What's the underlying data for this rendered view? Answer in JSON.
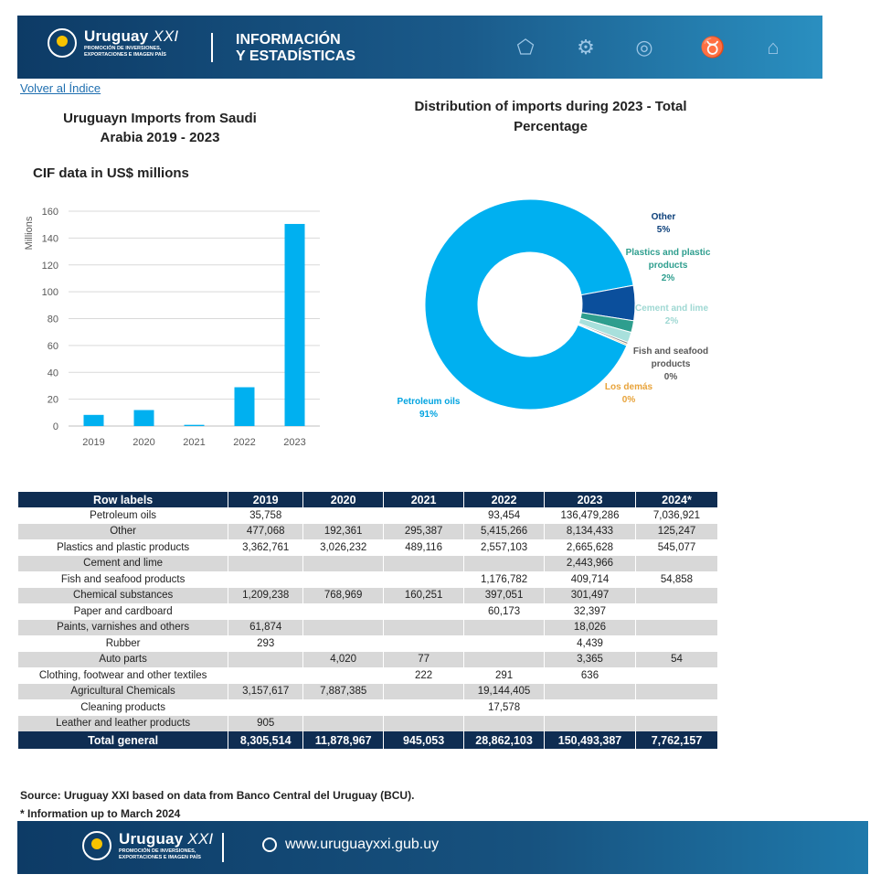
{
  "header": {
    "brand": "Uruguay",
    "brand_suffix": "XXI",
    "tagline_1": "PROMOCIÓN DE INVERSIONES,",
    "tagline_2": "EXPORTACIONES E IMAGEN PAÍS",
    "section_1": "INFORMACIÓN",
    "section_2": "Y ESTADÍSTICAS",
    "icons": [
      "uruguay-map-icon",
      "tractor-icon",
      "globe-icon",
      "cow-icon",
      "industry-icon"
    ]
  },
  "back_link": "Volver al Índice",
  "bar_title_1": "Uruguayn Imports from Saudi",
  "bar_title_2": "Arabia 2019 - 2023",
  "bar_subtitle": "CIF data in US$ millions",
  "pie_title_1": "Distribution of imports during 2023 - Total",
  "pie_title_2": "Percentage",
  "chart_data": [
    {
      "type": "bar",
      "title": "Uruguayn Imports from Saudi Arabia 2019 - 2023",
      "subtitle": "CIF data in US$ millions",
      "categories": [
        "2019",
        "2020",
        "2021",
        "2022",
        "2023"
      ],
      "values": [
        8.3,
        11.9,
        0.9,
        28.9,
        150.5
      ],
      "ylabel": "Millions",
      "ylim": [
        0,
        160
      ],
      "yticks": [
        0,
        20,
        40,
        60,
        80,
        100,
        120,
        140,
        160
      ],
      "grid": true,
      "color": "#00b0f0"
    },
    {
      "type": "pie",
      "title": "Distribution of imports during 2023 - Total Percentage",
      "donut": true,
      "slices": [
        {
          "label": "Petroleum oils",
          "pct_label": "91%",
          "value": 90.7,
          "color": "#00b0f0"
        },
        {
          "label": "Other",
          "pct_label": "5%",
          "value": 5.4,
          "color": "#0b4f9c"
        },
        {
          "label": "Plastics and plastic products",
          "pct_label": "2%",
          "value": 1.8,
          "color": "#2e9e8e"
        },
        {
          "label": "Cement and lime",
          "pct_label": "2%",
          "value": 1.6,
          "color": "#a8e0dc"
        },
        {
          "label": "Fish and seafood products",
          "pct_label": "0%",
          "value": 0.3,
          "color": "#8c8c8c"
        },
        {
          "label": "Los demás",
          "pct_label": "0%",
          "value": 0.2,
          "color": "#e8a33a"
        }
      ]
    }
  ],
  "table": {
    "headers": [
      "Row labels",
      "2019",
      "2020",
      "2021",
      "2022",
      "2023",
      "2024*"
    ],
    "rows": [
      [
        "Petroleum oils",
        "35,758",
        "",
        "",
        "93,454",
        "136,479,286",
        "7,036,921"
      ],
      [
        "Other",
        "477,068",
        "192,361",
        "295,387",
        "5,415,266",
        "8,134,433",
        "125,247"
      ],
      [
        "Plastics and plastic products",
        "3,362,761",
        "3,026,232",
        "489,116",
        "2,557,103",
        "2,665,628",
        "545,077"
      ],
      [
        "Cement and lime",
        "",
        "",
        "",
        "",
        "2,443,966",
        ""
      ],
      [
        "Fish and seafood products",
        "",
        "",
        "",
        "1,176,782",
        "409,714",
        "54,858"
      ],
      [
        "Chemical substances",
        "1,209,238",
        "768,969",
        "160,251",
        "397,051",
        "301,497",
        ""
      ],
      [
        "Paper and cardboard",
        "",
        "",
        "",
        "60,173",
        "32,397",
        ""
      ],
      [
        "Paints, varnishes and others",
        "61,874",
        "",
        "",
        "",
        "18,026",
        ""
      ],
      [
        "Rubber",
        "293",
        "",
        "",
        "",
        "4,439",
        ""
      ],
      [
        "Auto parts",
        "",
        "4,020",
        "77",
        "",
        "3,365",
        "54"
      ],
      [
        "Clothing, footwear and other textiles",
        "",
        "",
        "222",
        "291",
        "636",
        ""
      ],
      [
        "Agricultural Chemicals",
        "3,157,617",
        "7,887,385",
        "",
        "19,144,405",
        "",
        ""
      ],
      [
        "Cleaning products",
        "",
        "",
        "",
        "17,578",
        "",
        ""
      ],
      [
        "Leather and leather products",
        "905",
        "",
        "",
        "",
        "",
        ""
      ]
    ],
    "total": [
      "Total general",
      "8,305,514",
      "11,878,967",
      "945,053",
      "28,862,103",
      "150,493,387",
      "7,762,157"
    ]
  },
  "source_1": "Source: Uruguay XXI based on data from Banco Central del Uruguay (BCU).",
  "source_2": "* Information up to March 2024",
  "footer": {
    "brand": "Uruguay",
    "brand_suffix": "XXI",
    "tagline_1": "PROMOCIÓN DE INVERSIONES,",
    "tagline_2": "EXPORTACIONES E IMAGEN PAÍS",
    "website": "www.uruguayxxi.gub.uy"
  }
}
